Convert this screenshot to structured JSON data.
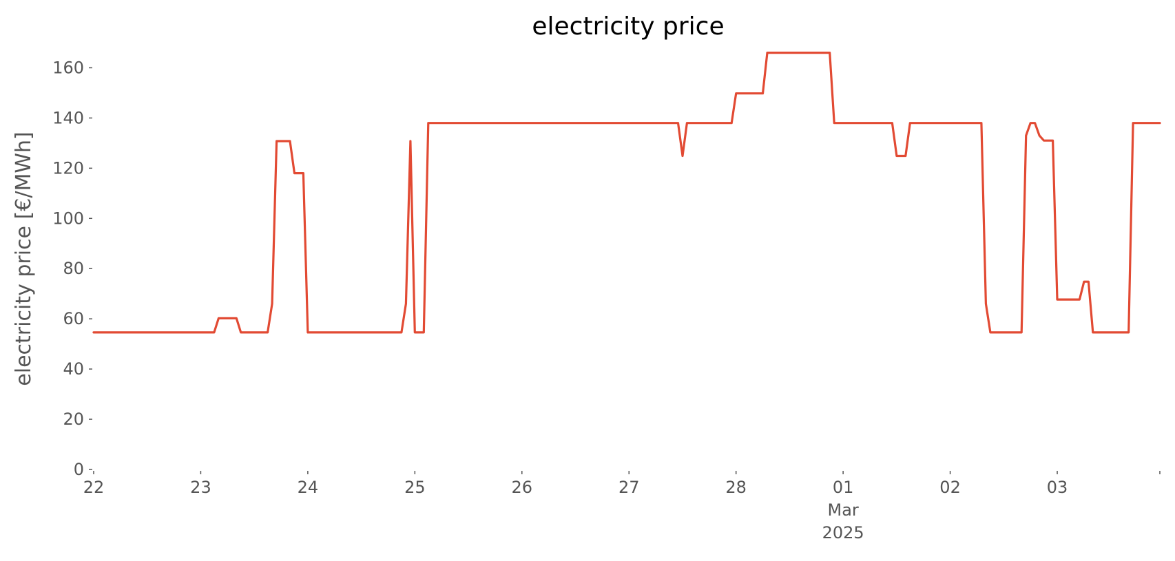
{
  "chart_data": {
    "type": "line",
    "title": "electricity price",
    "xlabel": "",
    "ylabel": "electricity price [€/MWh]",
    "ylim": [
      0,
      170
    ],
    "xlim": [
      "2025-02-22T00:00",
      "2025-03-03T23:00"
    ],
    "grid": false,
    "legend": "none",
    "y_ticks": [
      "0",
      "20",
      "40",
      "60",
      "80",
      "100",
      "120",
      "140",
      "160"
    ],
    "x_ticks": [
      {
        "at": "2025-02-22",
        "label": "22"
      },
      {
        "at": "2025-02-23",
        "label": "23"
      },
      {
        "at": "2025-02-24",
        "label": "24"
      },
      {
        "at": "2025-02-25",
        "label": "25"
      },
      {
        "at": "2025-02-26",
        "label": "26"
      },
      {
        "at": "2025-02-27",
        "label": "27"
      },
      {
        "at": "2025-02-28",
        "label": "28"
      },
      {
        "at": "2025-03-01",
        "label": "01\nMar\n2025"
      },
      {
        "at": "2025-03-02",
        "label": "02"
      },
      {
        "at": "2025-03-03",
        "label": "03"
      }
    ],
    "series": [
      {
        "color": "#e24a33",
        "points": [
          [
            "2025-02-22T00:00",
            54.6
          ],
          [
            "2025-02-23T03:00",
            54.6
          ],
          [
            "2025-02-23T04:00",
            60.2
          ],
          [
            "2025-02-23T08:00",
            60.2
          ],
          [
            "2025-02-23T09:00",
            54.6
          ],
          [
            "2025-02-23T15:00",
            54.6
          ],
          [
            "2025-02-23T16:00",
            66.0
          ],
          [
            "2025-02-23T17:00",
            130.8
          ],
          [
            "2025-02-23T20:00",
            130.8
          ],
          [
            "2025-02-23T21:00",
            118.0
          ],
          [
            "2025-02-23T23:00",
            118.0
          ],
          [
            "2025-02-24T00:00",
            54.6
          ],
          [
            "2025-02-24T21:00",
            54.6
          ],
          [
            "2025-02-24T22:00",
            66.0
          ],
          [
            "2025-02-24T23:00",
            130.8
          ],
          [
            "2025-02-25T00:00",
            54.6
          ],
          [
            "2025-02-25T02:00",
            54.6
          ],
          [
            "2025-02-25T03:00",
            138.0
          ],
          [
            "2025-02-27T11:00",
            138.0
          ],
          [
            "2025-02-27T12:00",
            124.9
          ],
          [
            "2025-02-27T13:00",
            138.0
          ],
          [
            "2025-02-27T23:00",
            138.0
          ],
          [
            "2025-02-28T00:00",
            149.8
          ],
          [
            "2025-02-28T06:00",
            149.8
          ],
          [
            "2025-02-28T07:00",
            166.0
          ],
          [
            "2025-02-28T21:00",
            166.0
          ],
          [
            "2025-02-28T22:00",
            138.0
          ],
          [
            "2025-03-01T11:00",
            138.0
          ],
          [
            "2025-03-01T12:00",
            124.9
          ],
          [
            "2025-03-01T14:00",
            124.9
          ],
          [
            "2025-03-01T15:00",
            138.0
          ],
          [
            "2025-03-02T07:00",
            138.0
          ],
          [
            "2025-03-02T08:00",
            66.0
          ],
          [
            "2025-03-02T09:00",
            54.6
          ],
          [
            "2025-03-02T16:00",
            54.6
          ],
          [
            "2025-03-02T17:00",
            133.0
          ],
          [
            "2025-03-02T18:00",
            138.0
          ],
          [
            "2025-03-02T19:00",
            138.0
          ],
          [
            "2025-03-02T20:00",
            133.0
          ],
          [
            "2025-03-02T21:00",
            131.0
          ],
          [
            "2025-03-02T23:00",
            131.0
          ],
          [
            "2025-03-03T00:00",
            67.7
          ],
          [
            "2025-03-03T05:00",
            67.7
          ],
          [
            "2025-03-03T06:00",
            74.8
          ],
          [
            "2025-03-03T07:00",
            74.8
          ],
          [
            "2025-03-03T08:00",
            54.6
          ],
          [
            "2025-03-03T16:00",
            54.6
          ],
          [
            "2025-03-03T17:00",
            138.0
          ],
          [
            "2025-03-03T23:00",
            138.0
          ]
        ]
      }
    ]
  }
}
